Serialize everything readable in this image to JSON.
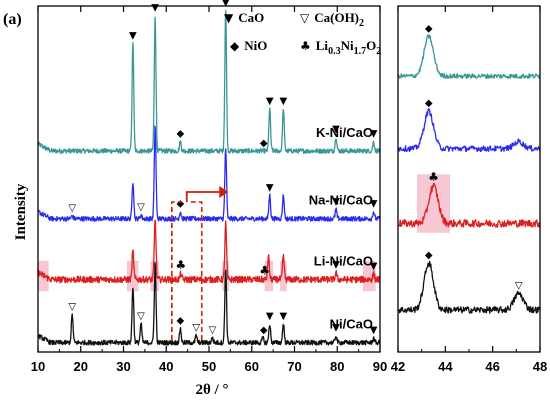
{
  "panel_label": "(a)",
  "colors": {
    "K-Ni/CaO": "#3a9797",
    "Na-Ni/CaO": "#2b2bef",
    "Li-Ni/CaO": "#dc1f1f",
    "Ni/CaO": "#111111",
    "highlight": "#f7c8d3",
    "arrow": "#cc2200"
  },
  "legend": [
    {
      "glyph": "▼",
      "label": "CaO"
    },
    {
      "glyph": "▽",
      "label": "Ca(OH)",
      "sub": "2"
    },
    {
      "glyph": "◆",
      "label": "NiO"
    },
    {
      "glyph": "♣",
      "label": "Li",
      "parts": [
        "0.3",
        "Ni",
        "1.7",
        "O",
        "2"
      ]
    }
  ],
  "chart_data": [
    {
      "type": "line",
      "xlabel": "2θ / °",
      "ylabel": "Intensity",
      "xlim": [
        10,
        90
      ],
      "xticks": [
        10,
        20,
        30,
        40,
        50,
        60,
        70,
        80,
        90
      ],
      "series": [
        {
          "name": "K-Ni/CaO",
          "baseline": 4.3,
          "noise": 0.05,
          "peaks": [
            [
              32.2,
              2.3
            ],
            [
              37.4,
              2.9
            ],
            [
              43.3,
              0.2
            ],
            [
              53.9,
              3.0
            ],
            [
              64.2,
              0.9
            ],
            [
              67.4,
              0.9
            ],
            [
              79.7,
              0.3
            ],
            [
              88.5,
              0.2
            ]
          ]
        },
        {
          "name": "Na-Ni/CaO",
          "baseline": 2.85,
          "noise": 0.05,
          "peaks": [
            [
              18.0,
              0.06
            ],
            [
              32.2,
              0.8
            ],
            [
              34.1,
              0.08
            ],
            [
              37.4,
              2.0
            ],
            [
              43.3,
              0.15
            ],
            [
              53.9,
              1.5
            ],
            [
              64.2,
              0.5
            ],
            [
              67.4,
              0.5
            ],
            [
              79.7,
              0.2
            ],
            [
              88.5,
              0.15
            ]
          ]
        },
        {
          "name": "Li-Ni/CaO",
          "baseline": 1.55,
          "noise": 0.07,
          "peaks": [
            [
              32.2,
              0.6
            ],
            [
              37.4,
              1.3
            ],
            [
              43.4,
              0.12
            ],
            [
              53.9,
              1.2
            ],
            [
              63.9,
              0.5
            ],
            [
              67.4,
              0.5
            ],
            [
              79.7,
              0.15
            ],
            [
              88.5,
              0.12
            ]
          ]
        },
        {
          "name": "Ni/CaO",
          "baseline": 0.2,
          "noise": 0.05,
          "peaks": [
            [
              18.0,
              0.6
            ],
            [
              32.2,
              1.2
            ],
            [
              34.1,
              0.4
            ],
            [
              37.4,
              1.7
            ],
            [
              43.3,
              0.3
            ],
            [
              47.0,
              0.15
            ],
            [
              50.8,
              0.1
            ],
            [
              53.9,
              1.6
            ],
            [
              62.6,
              0.1
            ],
            [
              64.2,
              0.4
            ],
            [
              67.4,
              0.4
            ],
            [
              79.7,
              0.15
            ],
            [
              88.5,
              0.1
            ]
          ]
        }
      ],
      "annotations": [
        {
          "series": "K-Ni/CaO",
          "markers": [
            [
              32.2,
              "▼"
            ],
            [
              37.4,
              "▼"
            ],
            [
              43.3,
              "◆"
            ],
            [
              53.9,
              "▼"
            ],
            [
              62.8,
              "◆"
            ],
            [
              64.2,
              "▼"
            ],
            [
              67.4,
              "▼"
            ],
            [
              79.7,
              "▼"
            ],
            [
              88.5,
              "▼"
            ]
          ]
        },
        {
          "series": "Na-Ni/CaO",
          "markers": [
            [
              18.0,
              "▽"
            ],
            [
              34.1,
              "▽"
            ],
            [
              43.3,
              "◆"
            ],
            [
              64.2,
              "▼"
            ],
            [
              79.7,
              "▼"
            ],
            [
              88.5,
              "▼"
            ]
          ]
        },
        {
          "series": "Li-Ni/CaO",
          "markers": [
            [
              43.4,
              "♣"
            ],
            [
              63.0,
              "♣"
            ],
            [
              79.7,
              "▼"
            ],
            [
              88.5,
              "▼"
            ]
          ]
        },
        {
          "series": "Ni/CaO",
          "markers": [
            [
              18.0,
              "▽"
            ],
            [
              34.1,
              "▽"
            ],
            [
              43.3,
              "◆"
            ],
            [
              47.0,
              "▽"
            ],
            [
              50.8,
              "▽"
            ],
            [
              62.8,
              "◆"
            ],
            [
              64.2,
              "▼"
            ],
            [
              67.4,
              "▼"
            ],
            [
              79.7,
              "▼"
            ],
            [
              88.5,
              "▼"
            ]
          ]
        }
      ]
    },
    {
      "type": "line",
      "xlabel": "",
      "ylabel": "",
      "xlim": [
        42,
        48
      ],
      "xticks": [
        42,
        44,
        46,
        48
      ],
      "series": [
        {
          "name": "K-Ni/CaO",
          "baseline": 5.9,
          "noise": 0.05,
          "peaks": [
            [
              43.3,
              0.85
            ]
          ]
        },
        {
          "name": "Na-Ni/CaO",
          "baseline": 4.35,
          "noise": 0.06,
          "peaks": [
            [
              43.3,
              0.8
            ],
            [
              47.1,
              0.15
            ]
          ]
        },
        {
          "name": "Li-Ni/CaO",
          "baseline": 2.75,
          "noise": 0.08,
          "peaks": [
            [
              43.5,
              0.8
            ]
          ]
        },
        {
          "name": "Ni/CaO",
          "baseline": 0.9,
          "noise": 0.07,
          "peaks": [
            [
              43.3,
              1.0
            ],
            [
              47.1,
              0.35
            ]
          ]
        }
      ],
      "annotations": [
        {
          "series": "K-Ni/CaO",
          "markers": [
            [
              43.3,
              "◆"
            ]
          ]
        },
        {
          "series": "Na-Ni/CaO",
          "markers": [
            [
              43.3,
              "◆"
            ]
          ]
        },
        {
          "series": "Li-Ni/CaO",
          "markers": [
            [
              43.5,
              "♣"
            ]
          ]
        },
        {
          "series": "Ni/CaO",
          "markers": [
            [
              43.3,
              "◆"
            ],
            [
              47.1,
              "▽"
            ]
          ]
        }
      ]
    }
  ]
}
